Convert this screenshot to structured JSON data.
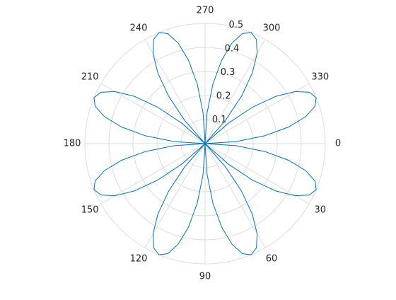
{
  "chart_data": {
    "type": "polar",
    "theta_direction": "clockwise",
    "theta_zero": "right",
    "thetaticks": [
      0,
      30,
      60,
      90,
      120,
      150,
      180,
      210,
      240,
      270,
      300,
      330
    ],
    "rlim": [
      0,
      0.5
    ],
    "rticks": [
      0.1,
      0.2,
      0.3,
      0.4,
      0.5
    ],
    "grid": true,
    "series": [
      {
        "color": "#0072bd",
        "x": [
          0,
          3.75,
          7.5,
          11.25,
          15,
          18.75,
          22.5,
          26.25,
          30,
          33.75,
          37.5,
          41.25,
          45,
          48.75,
          52.5,
          56.25,
          60,
          63.75,
          67.5,
          71.25,
          75,
          78.75,
          82.5,
          86.25,
          90,
          93.75,
          97.5,
          101.25,
          105,
          108.75,
          112.5,
          116.25,
          120,
          123.75,
          127.5,
          131.25,
          135,
          138.75,
          142.5,
          146.25,
          150,
          153.75,
          157.5,
          161.25,
          165,
          168.75,
          172.5,
          176.25,
          180,
          183.75,
          187.5,
          191.25,
          195,
          198.75,
          202.5,
          206.25,
          210,
          213.75,
          217.5,
          221.25,
          225,
          228.75,
          232.5,
          236.25,
          240,
          243.75,
          247.5,
          251.25,
          255,
          258.75,
          262.5,
          266.25,
          270,
          273.75,
          277.5,
          281.25,
          285,
          288.75,
          292.5,
          296.25,
          300,
          303.75,
          307.5,
          311.25,
          315,
          318.75,
          322.5,
          326.25,
          330,
          333.75,
          337.5,
          341.25,
          345,
          348.75,
          352.5,
          356.25,
          360
        ],
        "values": [
          0,
          0.129,
          0.25,
          0.354,
          0.433,
          0.483,
          0.5,
          0.483,
          0.433,
          0.354,
          0.25,
          0.129,
          0,
          0.129,
          0.25,
          0.354,
          0.433,
          0.483,
          0.5,
          0.483,
          0.433,
          0.354,
          0.25,
          0.129,
          0,
          0.129,
          0.25,
          0.354,
          0.433,
          0.483,
          0.5,
          0.483,
          0.433,
          0.354,
          0.25,
          0.129,
          0,
          0.129,
          0.25,
          0.354,
          0.433,
          0.483,
          0.5,
          0.483,
          0.433,
          0.354,
          0.25,
          0.129,
          0,
          0.129,
          0.25,
          0.354,
          0.433,
          0.483,
          0.5,
          0.483,
          0.433,
          0.354,
          0.25,
          0.129,
          0,
          0.129,
          0.25,
          0.354,
          0.433,
          0.483,
          0.5,
          0.483,
          0.433,
          0.354,
          0.25,
          0.129,
          0,
          0.129,
          0.25,
          0.354,
          0.433,
          0.483,
          0.5,
          0.483,
          0.433,
          0.354,
          0.25,
          0.129,
          0,
          0.129,
          0.25,
          0.354,
          0.433,
          0.483,
          0.5,
          0.483,
          0.433,
          0.354,
          0.25,
          0.129,
          0
        ]
      }
    ]
  }
}
